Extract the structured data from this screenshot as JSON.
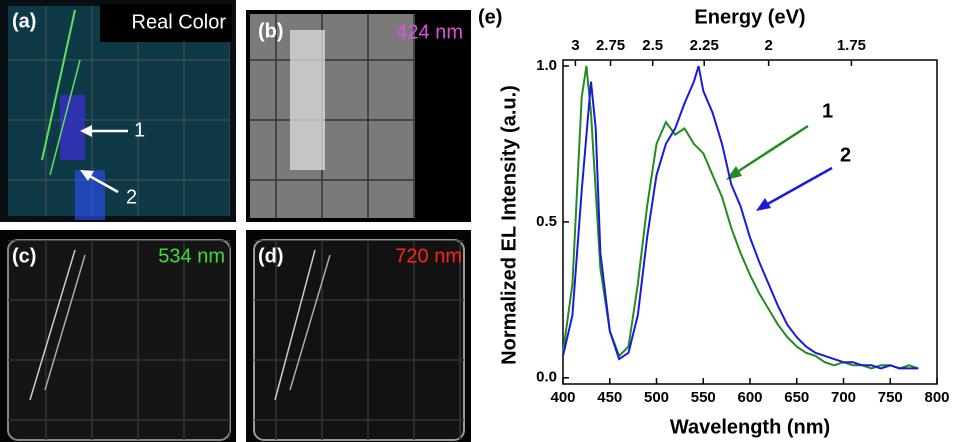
{
  "panels": [
    {
      "label": "(a)",
      "caption": "Real Color",
      "markers": [
        "1",
        "2"
      ]
    },
    {
      "label": "(b)",
      "caption": "424 nm"
    },
    {
      "label": "(c)",
      "caption": "534 nm"
    },
    {
      "label": "(d)",
      "caption": "720 nm"
    }
  ],
  "chart_data": {
    "type": "line",
    "panel_label": "(e)",
    "x_label": "Wavelength (nm)",
    "y_label": "Normalized EL Intensity (a.u.)",
    "x2_label": "Energy (eV)",
    "xlim": [
      400,
      800
    ],
    "xticks": [
      400,
      450,
      500,
      550,
      600,
      650,
      700,
      750,
      800
    ],
    "ylim": [
      -0.02,
      1.0
    ],
    "yticks": [
      {
        "value": 0,
        "label": "0.0"
      },
      0.5,
      {
        "value": 1,
        "label": "1.0"
      }
    ],
    "x2ticks": [
      3,
      2.75,
      2.5,
      2.25,
      2,
      1.75
    ],
    "series": [
      {
        "name": "1",
        "color": "#228b22",
        "x": [
          400,
          410,
          420,
          425,
          430,
          440,
          450,
          460,
          470,
          480,
          490,
          500,
          510,
          520,
          530,
          540,
          550,
          560,
          570,
          580,
          590,
          600,
          610,
          620,
          630,
          640,
          650,
          660,
          670,
          680,
          690,
          700,
          710,
          720,
          730,
          740,
          750,
          760,
          770,
          780
        ],
        "values": [
          0.08,
          0.3,
          0.9,
          1.0,
          0.85,
          0.35,
          0.15,
          0.07,
          0.1,
          0.3,
          0.55,
          0.75,
          0.82,
          0.78,
          0.8,
          0.75,
          0.72,
          0.65,
          0.58,
          0.48,
          0.4,
          0.33,
          0.27,
          0.22,
          0.17,
          0.13,
          0.1,
          0.08,
          0.07,
          0.05,
          0.04,
          0.05,
          0.04,
          0.04,
          0.03,
          0.04,
          0.04,
          0.03,
          0.04,
          0.03
        ]
      },
      {
        "name": "2",
        "color": "#1a1adb",
        "x": [
          400,
          410,
          420,
          430,
          435,
          440,
          450,
          460,
          470,
          480,
          490,
          500,
          510,
          520,
          530,
          540,
          545,
          550,
          560,
          570,
          580,
          590,
          600,
          610,
          620,
          630,
          640,
          650,
          660,
          670,
          680,
          690,
          700,
          710,
          720,
          730,
          740,
          750,
          760,
          770,
          780
        ],
        "values": [
          0.07,
          0.2,
          0.6,
          0.95,
          0.8,
          0.4,
          0.15,
          0.06,
          0.08,
          0.2,
          0.45,
          0.65,
          0.75,
          0.8,
          0.88,
          0.95,
          1.0,
          0.92,
          0.85,
          0.75,
          0.62,
          0.55,
          0.45,
          0.37,
          0.3,
          0.23,
          0.17,
          0.13,
          0.1,
          0.08,
          0.07,
          0.06,
          0.05,
          0.05,
          0.04,
          0.04,
          0.03,
          0.04,
          0.03,
          0.03,
          0.03
        ]
      }
    ]
  }
}
